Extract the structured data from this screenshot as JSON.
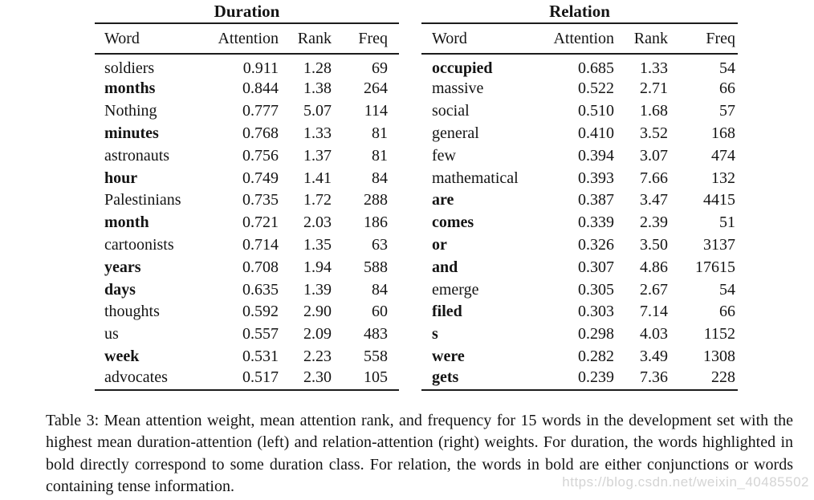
{
  "colors": {
    "text": "#141414",
    "rule": "#1c1c1c",
    "watermark": "#d4d4d4",
    "background": "#ffffff"
  },
  "tables": [
    {
      "title": "Duration",
      "columns": [
        "Word",
        "Attention",
        "Rank",
        "Freq"
      ],
      "rows": [
        {
          "word": "soldiers",
          "bold": false,
          "attention": "0.911",
          "rank": "1.28",
          "freq": "69"
        },
        {
          "word": "months",
          "bold": true,
          "attention": "0.844",
          "rank": "1.38",
          "freq": "264"
        },
        {
          "word": "Nothing",
          "bold": false,
          "attention": "0.777",
          "rank": "5.07",
          "freq": "114"
        },
        {
          "word": "minutes",
          "bold": true,
          "attention": "0.768",
          "rank": "1.33",
          "freq": "81"
        },
        {
          "word": "astronauts",
          "bold": false,
          "attention": "0.756",
          "rank": "1.37",
          "freq": "81"
        },
        {
          "word": "hour",
          "bold": true,
          "attention": "0.749",
          "rank": "1.41",
          "freq": "84"
        },
        {
          "word": "Palestinians",
          "bold": false,
          "attention": "0.735",
          "rank": "1.72",
          "freq": "288"
        },
        {
          "word": "month",
          "bold": true,
          "attention": "0.721",
          "rank": "2.03",
          "freq": "186"
        },
        {
          "word": "cartoonists",
          "bold": false,
          "attention": "0.714",
          "rank": "1.35",
          "freq": "63"
        },
        {
          "word": "years",
          "bold": true,
          "attention": "0.708",
          "rank": "1.94",
          "freq": "588"
        },
        {
          "word": "days",
          "bold": true,
          "attention": "0.635",
          "rank": "1.39",
          "freq": "84"
        },
        {
          "word": "thoughts",
          "bold": false,
          "attention": "0.592",
          "rank": "2.90",
          "freq": "60"
        },
        {
          "word": "us",
          "bold": false,
          "attention": "0.557",
          "rank": "2.09",
          "freq": "483"
        },
        {
          "word": "week",
          "bold": true,
          "attention": "0.531",
          "rank": "2.23",
          "freq": "558"
        },
        {
          "word": "advocates",
          "bold": false,
          "attention": "0.517",
          "rank": "2.30",
          "freq": "105"
        }
      ]
    },
    {
      "title": "Relation",
      "columns": [
        "Word",
        "Attention",
        "Rank",
        "Freq"
      ],
      "rows": [
        {
          "word": "occupied",
          "bold": true,
          "attention": "0.685",
          "rank": "1.33",
          "freq": "54"
        },
        {
          "word": "massive",
          "bold": false,
          "attention": "0.522",
          "rank": "2.71",
          "freq": "66"
        },
        {
          "word": "social",
          "bold": false,
          "attention": "0.510",
          "rank": "1.68",
          "freq": "57"
        },
        {
          "word": "general",
          "bold": false,
          "attention": "0.410",
          "rank": "3.52",
          "freq": "168"
        },
        {
          "word": "few",
          "bold": false,
          "attention": "0.394",
          "rank": "3.07",
          "freq": "474"
        },
        {
          "word": "mathematical",
          "bold": false,
          "attention": "0.393",
          "rank": "7.66",
          "freq": "132"
        },
        {
          "word": "are",
          "bold": true,
          "attention": "0.387",
          "rank": "3.47",
          "freq": "4415"
        },
        {
          "word": "comes",
          "bold": true,
          "attention": "0.339",
          "rank": "2.39",
          "freq": "51"
        },
        {
          "word": "or",
          "bold": true,
          "attention": "0.326",
          "rank": "3.50",
          "freq": "3137"
        },
        {
          "word": "and",
          "bold": true,
          "attention": "0.307",
          "rank": "4.86",
          "freq": "17615"
        },
        {
          "word": "emerge",
          "bold": false,
          "attention": "0.305",
          "rank": "2.67",
          "freq": "54"
        },
        {
          "word": "filed",
          "bold": true,
          "attention": "0.303",
          "rank": "7.14",
          "freq": "66"
        },
        {
          "word": "s",
          "bold": true,
          "attention": "0.298",
          "rank": "4.03",
          "freq": "1152"
        },
        {
          "word": "were",
          "bold": true,
          "attention": "0.282",
          "rank": "3.49",
          "freq": "1308"
        },
        {
          "word": "gets",
          "bold": true,
          "attention": "0.239",
          "rank": "7.36",
          "freq": "228"
        }
      ]
    }
  ],
  "caption": "Table 3: Mean attention weight, mean attention rank, and frequency for 15 words in the development set with the highest mean duration-attention (left) and relation-attention (right) weights. For duration, the words highlighted in bold directly correspond to some duration class. For relation, the words in bold are either conjunctions or words containing tense information.",
  "watermark": "https://blog.csdn.net/weixin_40485502"
}
